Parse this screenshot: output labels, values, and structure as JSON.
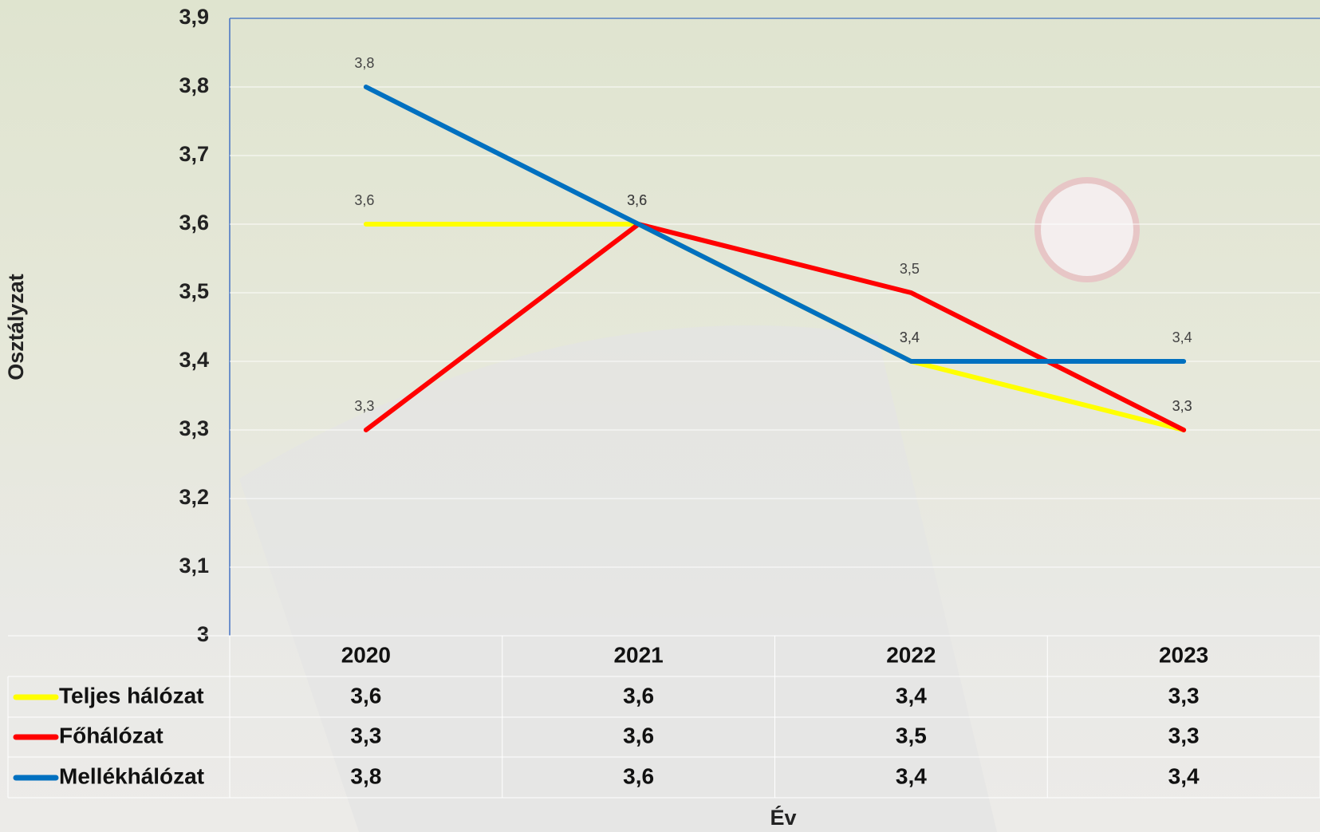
{
  "chart_data": {
    "type": "line",
    "categories": [
      "2020",
      "2021",
      "2022",
      "2023"
    ],
    "series": [
      {
        "name": "Teljes hálózat",
        "color": "#ffff00",
        "values": [
          3.6,
          3.6,
          3.4,
          3.3
        ],
        "value_labels": [
          "3,6",
          "3,6",
          "3,4",
          "3,3"
        ]
      },
      {
        "name": "Főhálózat",
        "color": "#ff0000",
        "values": [
          3.3,
          3.6,
          3.5,
          3.3
        ],
        "value_labels": [
          "3,3",
          "3,6",
          "3,5",
          "3,3"
        ]
      },
      {
        "name": "Mellékhálózat",
        "color": "#0070c0",
        "values": [
          3.8,
          3.6,
          3.4,
          3.4
        ],
        "value_labels": [
          "3,8",
          "3,6",
          "3,4",
          "3,4"
        ]
      }
    ],
    "ylim": [
      3,
      3.9
    ],
    "yticks": [
      3,
      {
        "value": 3.1,
        "label": "3,1"
      },
      {
        "value": 3.2,
        "label": "3,2"
      },
      {
        "value": 3.3,
        "label": "3,3"
      },
      {
        "value": 3.4,
        "label": "3,4"
      },
      {
        "value": 3.5,
        "label": "3,5"
      },
      {
        "value": 3.6,
        "label": "3,6"
      },
      {
        "value": 3.7,
        "label": "3,7"
      },
      {
        "value": 3.8,
        "label": "3,8"
      },
      {
        "value": 3.9,
        "label": "3,9"
      }
    ],
    "y_label": "Osztályzat",
    "x_label": "Év",
    "grid": true
  }
}
